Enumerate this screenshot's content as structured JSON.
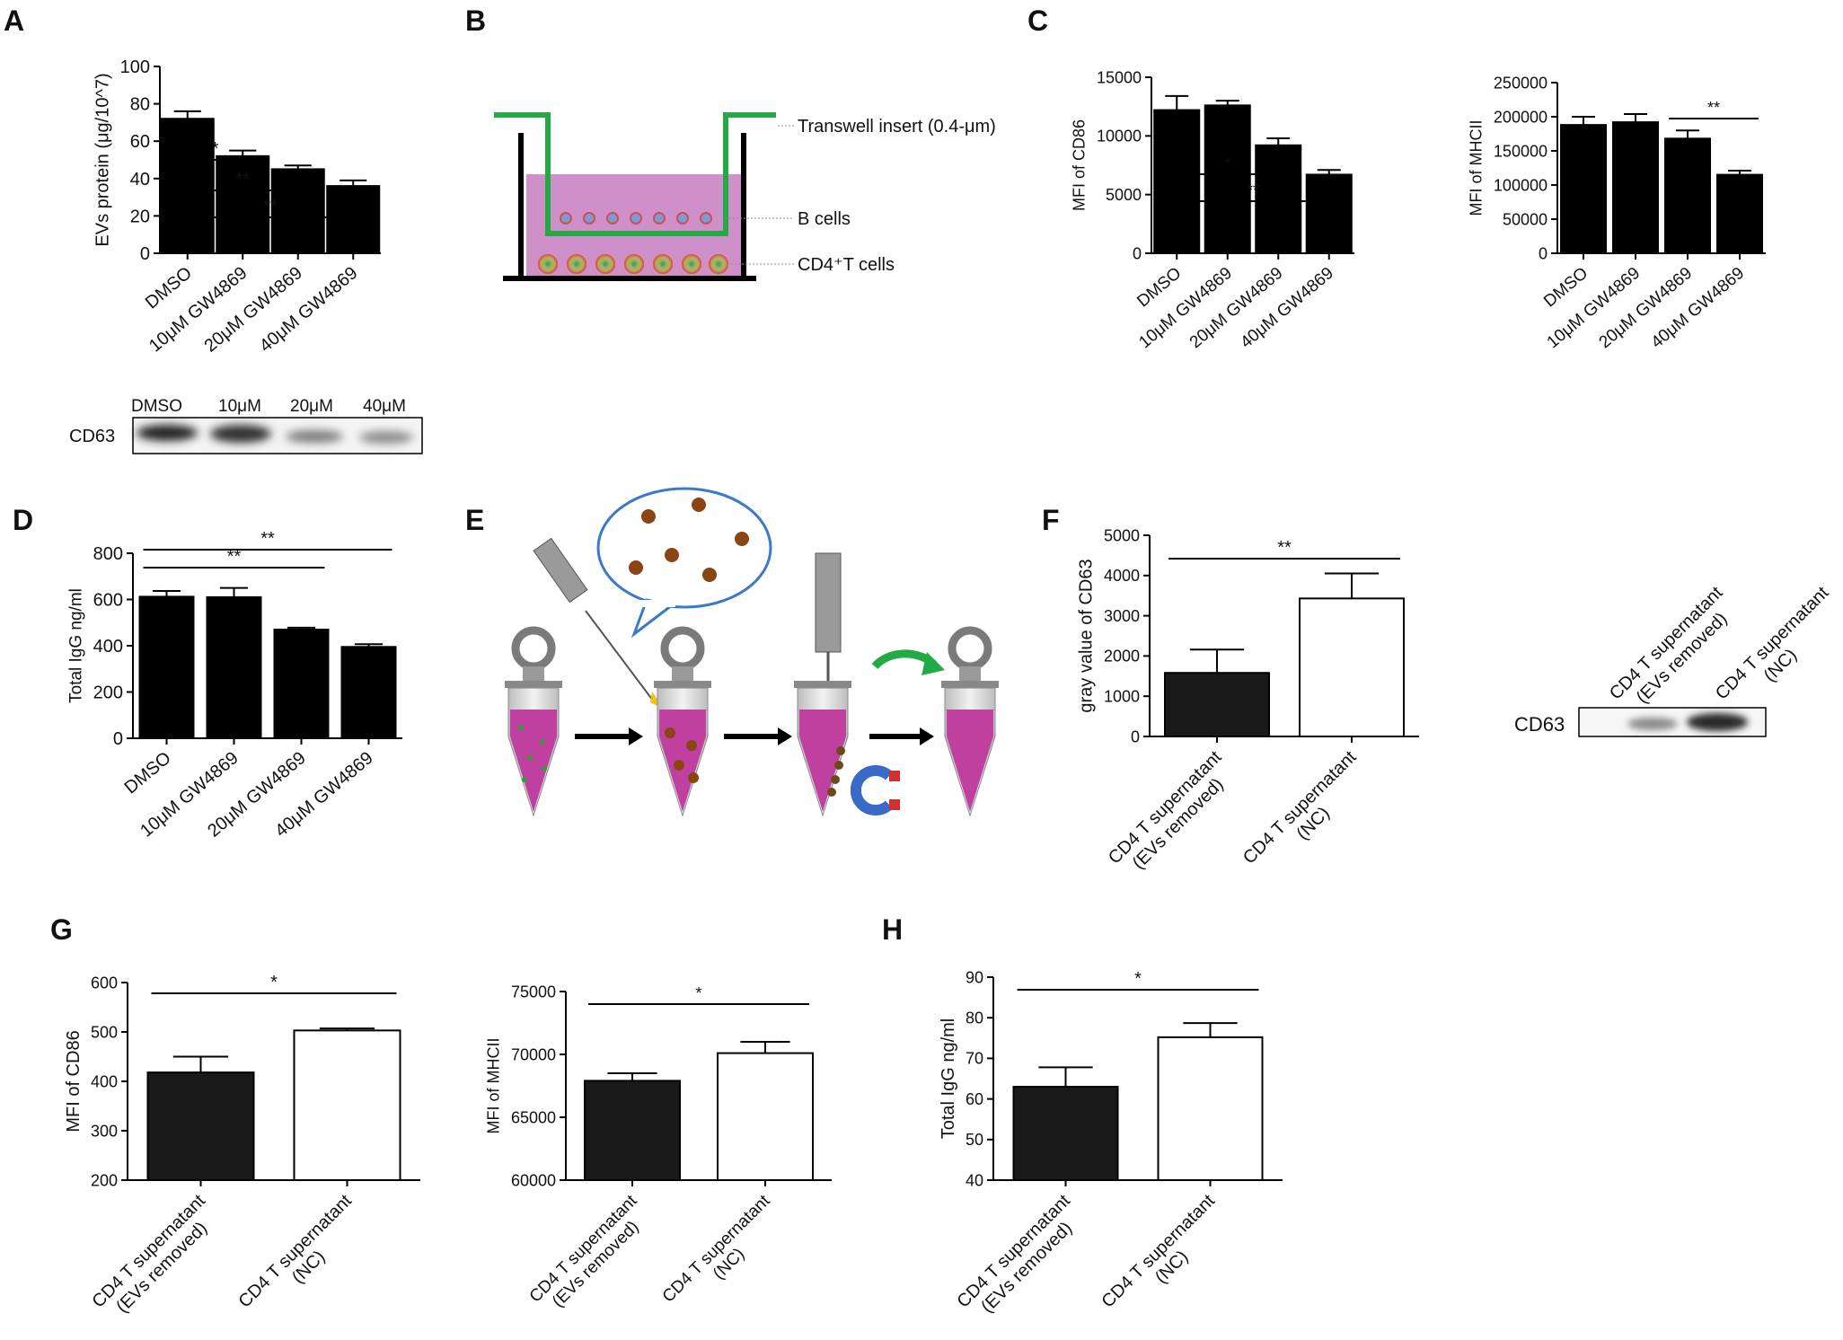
{
  "panels": {
    "A": "A",
    "B": "B",
    "C": "C",
    "D": "D",
    "E": "E",
    "F": "F",
    "G": "G",
    "H": "H"
  },
  "western_blots": {
    "A": {
      "label": "CD63",
      "lanes": [
        "DMSO",
        "10μM",
        "20μM",
        "40μM"
      ]
    },
    "F": {
      "label": "CD63",
      "lanes": [
        "CD4 T supernatant (EVs removed)",
        "CD4 T supernatant (NC)"
      ]
    }
  },
  "diagram_B": {
    "transwell_label": "Transwell insert (0.4-μm)",
    "b_cells_label": "B cells",
    "t_cells_label": "CD4⁺T cells"
  },
  "chart_data": [
    {
      "id": "A",
      "type": "bar",
      "title": "",
      "xlabel": "",
      "ylabel": "EVs protein (μg/10^7)",
      "ylim": [
        0,
        100
      ],
      "yticks": [
        0,
        20,
        40,
        60,
        80,
        100
      ],
      "categories": [
        "DMSO",
        "10μM GW4869",
        "20μM GW4869",
        "40μM GW4869"
      ],
      "values": [
        72,
        52,
        45,
        36
      ],
      "errors": [
        4,
        3,
        2,
        3
      ],
      "fills": [
        "#000000",
        "#000000",
        "#000000",
        "#000000"
      ],
      "significance": [
        {
          "from": 0,
          "to": 1,
          "label": "*"
        },
        {
          "from": 0,
          "to": 2,
          "label": "**"
        },
        {
          "from": 0,
          "to": 3,
          "label": "**"
        }
      ]
    },
    {
      "id": "C1",
      "type": "bar",
      "title": "",
      "xlabel": "",
      "ylabel": "MFI of CD86",
      "ylim": [
        0,
        15000
      ],
      "yticks": [
        0,
        5000,
        10000,
        15000
      ],
      "categories": [
        "DMSO",
        "10μM GW4869",
        "20μM GW4869",
        "40μM GW4869"
      ],
      "values": [
        12200,
        12600,
        9200,
        6700
      ],
      "errors": [
        1200,
        400,
        600,
        400
      ],
      "fills": [
        "#000000",
        "#000000",
        "#000000",
        "#000000"
      ],
      "significance": [
        {
          "from": 0,
          "to": 2,
          "label": "*"
        },
        {
          "from": 0,
          "to": 3,
          "label": "**"
        }
      ]
    },
    {
      "id": "C2",
      "type": "bar",
      "title": "",
      "xlabel": "",
      "ylabel": "MFI of MHCII",
      "ylim": [
        0,
        250000
      ],
      "yticks": [
        0,
        50000,
        100000,
        150000,
        200000,
        250000
      ],
      "categories": [
        "DMSO",
        "10μM GW4869",
        "20μM GW4869",
        "40μM GW4869"
      ],
      "values": [
        188000,
        192000,
        168000,
        115000
      ],
      "errors": [
        12000,
        12000,
        12000,
        6000
      ],
      "fills": [
        "#000000",
        "#000000",
        "#000000",
        "#000000"
      ],
      "significance": [
        {
          "from": 2,
          "to": 3,
          "label": "**"
        }
      ]
    },
    {
      "id": "D",
      "type": "bar",
      "title": "",
      "xlabel": "",
      "ylabel": "Total IgG ng/ml",
      "ylim": [
        0,
        800
      ],
      "yticks": [
        0,
        200,
        400,
        600,
        800
      ],
      "categories": [
        "DMSO",
        "10μM GW4869",
        "20μM GW4869",
        "40μM GW4869"
      ],
      "values": [
        612,
        610,
        470,
        395
      ],
      "errors": [
        25,
        40,
        8,
        12
      ],
      "fills": [
        "#000000",
        "#000000",
        "#000000",
        "#000000"
      ],
      "significance": [
        {
          "from": 0,
          "to": 2,
          "label": "**"
        },
        {
          "from": 0,
          "to": 3,
          "label": "**"
        }
      ]
    },
    {
      "id": "F",
      "type": "bar",
      "title": "",
      "xlabel": "",
      "ylabel": "gray value of CD63",
      "ylim": [
        0,
        5000
      ],
      "yticks": [
        0,
        1000,
        2000,
        3000,
        4000,
        5000
      ],
      "categories": [
        [
          "CD4 T supernatant",
          "(EVs removed)"
        ],
        [
          "CD4 T supernatant",
          "(NC)"
        ]
      ],
      "values": [
        1580,
        3430
      ],
      "errors": [
        580,
        620
      ],
      "fills": [
        "#1a1a1a",
        "#ffffff"
      ],
      "significance": [
        {
          "from": 0,
          "to": 1,
          "label": "**"
        }
      ]
    },
    {
      "id": "G1",
      "type": "bar",
      "title": "",
      "xlabel": "",
      "ylabel": "MFI of CD86",
      "ylim": [
        200,
        600
      ],
      "yticks": [
        200,
        300,
        400,
        500,
        600
      ],
      "categories": [
        [
          "CD4 T supernatant",
          "(EVs removed)"
        ],
        [
          "CD4 T supernatant",
          "(NC)"
        ]
      ],
      "values": [
        418,
        503
      ],
      "errors": [
        32,
        4
      ],
      "fills": [
        "#1a1a1a",
        "#ffffff"
      ],
      "significance": [
        {
          "from": 0,
          "to": 1,
          "label": "*"
        }
      ]
    },
    {
      "id": "G2",
      "type": "bar",
      "title": "",
      "xlabel": "",
      "ylabel": "MFI of MHCII",
      "ylim": [
        60000,
        75000
      ],
      "yticks": [
        60000,
        65000,
        70000,
        75000
      ],
      "categories": [
        [
          "CD4 T supernatant",
          "(EVs removed)"
        ],
        [
          "CD4 T supernatant",
          "(NC)"
        ]
      ],
      "values": [
        67900,
        70100
      ],
      "errors": [
        600,
        900
      ],
      "fills": [
        "#1a1a1a",
        "#ffffff"
      ],
      "significance": [
        {
          "from": 0,
          "to": 1,
          "label": "*"
        }
      ]
    },
    {
      "id": "H",
      "type": "bar",
      "title": "",
      "xlabel": "",
      "ylabel": "Total IgG ng/ml",
      "ylim": [
        40,
        90
      ],
      "yticks": [
        40,
        50,
        60,
        70,
        80,
        90
      ],
      "categories": [
        [
          "CD4 T supernatant",
          "(EVs removed)"
        ],
        [
          "CD4 T supernatant",
          "(NC)"
        ]
      ],
      "values": [
        63,
        75.2
      ],
      "errors": [
        4.8,
        3.5
      ],
      "fills": [
        "#1a1a1a",
        "#ffffff"
      ],
      "significance": [
        {
          "from": 0,
          "to": 1,
          "label": "*"
        }
      ]
    }
  ]
}
